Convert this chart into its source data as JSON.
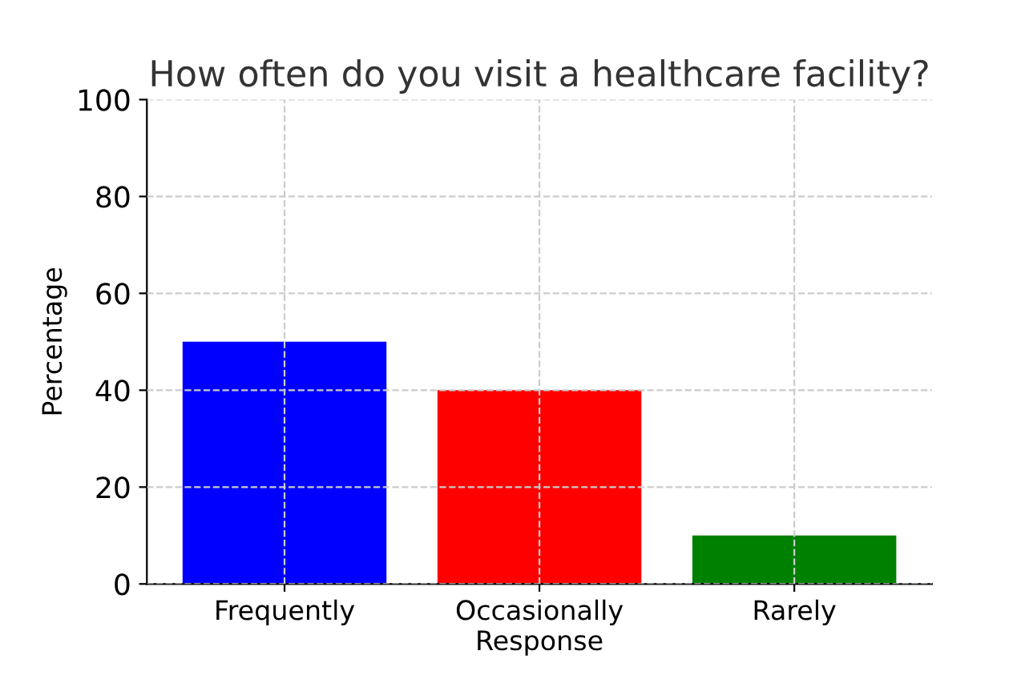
{
  "chart_data": {
    "type": "bar",
    "title": "How often do you visit a healthcare facility?",
    "xlabel": "Response",
    "ylabel": "Percentage",
    "categories": [
      "Frequently",
      "Occasionally",
      "Rarely"
    ],
    "values": [
      50,
      40,
      10
    ],
    "colors": [
      "#0000ff",
      "#ff0000",
      "#008000"
    ],
    "ylim": [
      0,
      100
    ],
    "yticks": [
      0,
      20,
      40,
      60,
      80,
      100
    ],
    "grid": true
  }
}
